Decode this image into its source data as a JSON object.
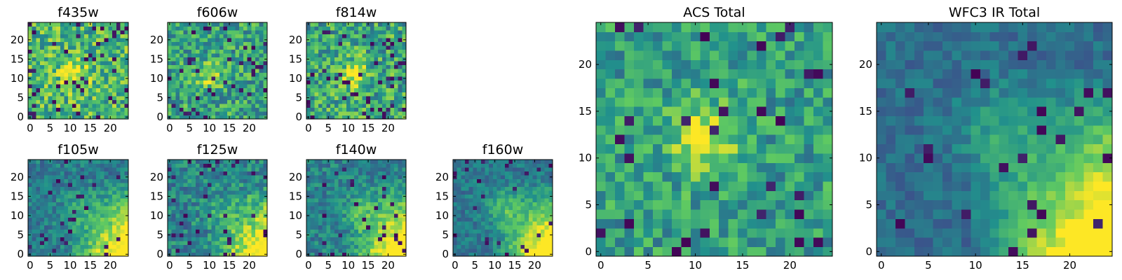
{
  "figure": {
    "colormap": "viridis",
    "colormap_stops": [
      "#440154",
      "#3b528b",
      "#21918c",
      "#5ec962",
      "#fde725"
    ],
    "background": "#ffffff"
  },
  "chart_data": [
    {
      "type": "heatmap",
      "title": "f435w",
      "shape": [
        25,
        25
      ],
      "x_ticks": [
        0,
        5,
        10,
        15,
        20
      ],
      "y_ticks": [
        0,
        5,
        10,
        15,
        20
      ],
      "xlim": [
        -0.5,
        24.5
      ],
      "ylim": [
        -0.5,
        24.5
      ],
      "pattern": {
        "base": 0.66,
        "noise": 0.26,
        "dark_frac": 0.08,
        "blob": [
          11,
          11,
          2.5,
          0.3
        ],
        "gradient": 0,
        "cell": 1,
        "seed": 11
      },
      "note": "per-pixel values approximated: noisy green/yellow field with faint bright source near (11,11)"
    },
    {
      "type": "heatmap",
      "title": "f606w",
      "shape": [
        25,
        25
      ],
      "x_ticks": [
        0,
        5,
        10,
        15,
        20
      ],
      "y_ticks": [
        0,
        5,
        10,
        15,
        20
      ],
      "xlim": [
        -0.5,
        24.5
      ],
      "ylim": [
        -0.5,
        24.5
      ],
      "pattern": {
        "base": 0.58,
        "noise": 0.24,
        "dark_frac": 0.05,
        "blob": [
          10,
          11,
          2.2,
          0.38
        ],
        "gradient": 0,
        "cell": 1,
        "seed": 23
      },
      "note": "per-pixel values approximated: noisy field with bright source near (10,11)"
    },
    {
      "type": "heatmap",
      "title": "f814w",
      "shape": [
        25,
        25
      ],
      "x_ticks": [
        0,
        5,
        10,
        15,
        20
      ],
      "y_ticks": [
        0,
        5,
        10,
        15,
        20
      ],
      "xlim": [
        -0.5,
        24.5
      ],
      "ylim": [
        -0.5,
        24.5
      ],
      "pattern": {
        "base": 0.6,
        "noise": 0.26,
        "dark_frac": 0.07,
        "blob": [
          12,
          11,
          2.4,
          0.34
        ],
        "gradient": 0,
        "cell": 1,
        "seed": 37
      },
      "note": "per-pixel values approximated: noisy field with bright source near (12,11)"
    },
    {
      "type": "heatmap",
      "title": "f105w",
      "shape": [
        25,
        25
      ],
      "x_ticks": [
        0,
        5,
        10,
        15,
        20
      ],
      "y_ticks": [
        0,
        5,
        10,
        15,
        20
      ],
      "xlim": [
        -0.5,
        24.5
      ],
      "ylim": [
        -0.5,
        24.5
      ],
      "pattern": {
        "base": 0.42,
        "noise": 0.14,
        "dark_frac": 0.04,
        "blob": [
          11,
          11,
          3.0,
          0.12
        ],
        "gradient": 0.55,
        "cell": 1,
        "seed": 51
      },
      "note": "per-pixel values approximated: smooth blue-green field, bright yellow toward lower-right corner"
    },
    {
      "type": "heatmap",
      "title": "f125w",
      "shape": [
        25,
        25
      ],
      "x_ticks": [
        0,
        5,
        10,
        15,
        20
      ],
      "y_ticks": [
        0,
        5,
        10,
        15,
        20
      ],
      "xlim": [
        -0.5,
        24.5
      ],
      "ylim": [
        -0.5,
        24.5
      ],
      "pattern": {
        "base": 0.45,
        "noise": 0.18,
        "dark_frac": 0.05,
        "blob": [
          11,
          11,
          3.0,
          0.1
        ],
        "gradient": 0.5,
        "cell": 1,
        "seed": 63
      },
      "note": "per-pixel values approximated: blue-green field, bright toward lower-right corner"
    },
    {
      "type": "heatmap",
      "title": "f140w",
      "shape": [
        25,
        25
      ],
      "x_ticks": [
        0,
        5,
        10,
        15,
        20
      ],
      "y_ticks": [
        0,
        5,
        10,
        15,
        20
      ],
      "xlim": [
        -0.5,
        24.5
      ],
      "ylim": [
        -0.5,
        24.5
      ],
      "pattern": {
        "base": 0.44,
        "noise": 0.15,
        "dark_frac": 0.05,
        "blob": [
          12,
          11,
          3.0,
          0.16
        ],
        "gradient": 0.55,
        "cell": 1,
        "seed": 79
      },
      "note": "per-pixel values approximated: field with faint central source, bright lower-right corner"
    },
    {
      "type": "heatmap",
      "title": "f160w",
      "shape": [
        25,
        25
      ],
      "x_ticks": [
        0,
        5,
        10,
        15,
        20
      ],
      "y_ticks": [
        0,
        5,
        10,
        15,
        20
      ],
      "xlim": [
        -0.5,
        24.5
      ],
      "ylim": [
        -0.5,
        24.5
      ],
      "pattern": {
        "base": 0.4,
        "noise": 0.12,
        "dark_frac": 0.04,
        "blob": [
          12,
          12,
          3.2,
          0.22
        ],
        "gradient": 0.58,
        "cell": 1,
        "seed": 97
      },
      "note": "per-pixel values approximated: smooth field, central source near (12,12), bright lower-right corner"
    },
    {
      "type": "heatmap",
      "title": "ACS Total",
      "shape": [
        25,
        25
      ],
      "x_ticks": [
        0,
        5,
        10,
        15,
        20
      ],
      "y_ticks": [
        0,
        5,
        10,
        15,
        20
      ],
      "xlim": [
        -0.5,
        24.5
      ],
      "ylim": [
        -0.5,
        24.5
      ],
      "pattern": {
        "base": 0.56,
        "noise": 0.2,
        "dark_frac": 0.05,
        "blob": [
          11,
          12,
          2.6,
          0.38
        ],
        "gradient": 0,
        "cell": 1,
        "seed": 113
      },
      "note": "per-pixel values approximated: green field with bright yellow source near (11,12)"
    },
    {
      "type": "heatmap",
      "title": "WFC3 IR Total",
      "shape": [
        25,
        25
      ],
      "x_ticks": [
        0,
        5,
        10,
        15,
        20
      ],
      "y_ticks": [
        0,
        5,
        10,
        15,
        20
      ],
      "xlim": [
        -0.5,
        24.5
      ],
      "ylim": [
        -0.5,
        24.5
      ],
      "pattern": {
        "base": 0.36,
        "noise": 0.1,
        "dark_frac": 0.04,
        "blob": [
          12,
          13,
          3.2,
          0.16
        ],
        "gradient": 0.62,
        "cell": 1,
        "seed": 131
      },
      "note": "per-pixel values approximated: blue-teal field, faint central source, bright yellow lower-right corner"
    }
  ]
}
